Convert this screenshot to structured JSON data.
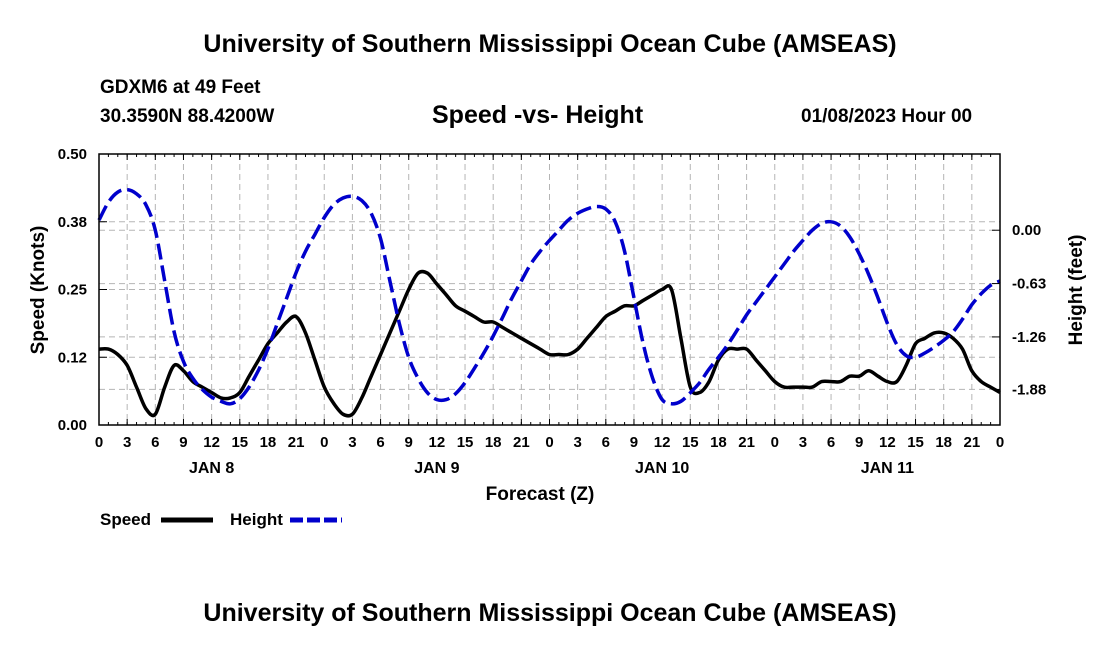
{
  "header": {
    "title": "University of Southern Mississippi Ocean Cube (AMSEAS)",
    "station": "GDXM6 at 49 Feet",
    "coords": "30.3590N  88.4200W",
    "date": "01/08/2023 Hour 00"
  },
  "footer": {
    "title": "University of Southern Mississippi Ocean Cube (AMSEAS)"
  },
  "chart_data": {
    "type": "line",
    "title": "Speed -vs- Height",
    "xlabel": "Forecast (Z)",
    "ylabel_left": "Speed (Knots)",
    "ylabel_right": "Height (feet)",
    "x_unit": "hours since 01/08/2023 00Z",
    "xlim": [
      0,
      96
    ],
    "x_ticks": [
      0,
      3,
      6,
      9,
      12,
      15,
      18,
      21,
      24,
      27,
      30,
      33,
      36,
      39,
      42,
      45,
      48,
      51,
      54,
      57,
      60,
      63,
      66,
      69,
      72,
      75,
      78,
      81,
      84,
      87,
      90,
      93,
      96
    ],
    "x_tick_labels": [
      "0",
      "3",
      "6",
      "9",
      "12",
      "15",
      "18",
      "21",
      "0",
      "3",
      "6",
      "9",
      "12",
      "15",
      "18",
      "21",
      "0",
      "3",
      "6",
      "9",
      "12",
      "15",
      "18",
      "21",
      "0",
      "3",
      "6",
      "9",
      "12",
      "15",
      "18",
      "21",
      "0"
    ],
    "day_labels": [
      {
        "x": 12,
        "label": "JAN 8"
      },
      {
        "x": 36,
        "label": "JAN 9"
      },
      {
        "x": 60,
        "label": "JAN 10"
      },
      {
        "x": 84,
        "label": "JAN 11"
      }
    ],
    "left_axis": {
      "ylim": [
        0,
        0.5
      ],
      "ticks": [
        0,
        0.125,
        0.25,
        0.375,
        0.5
      ],
      "tick_labels": [
        "0.00",
        "0.12",
        "0.25",
        "0.38",
        "0.50"
      ]
    },
    "right_axis": {
      "ylim": [
        -2.3,
        0.9
      ],
      "ticks": [
        0,
        -0.63,
        -1.26,
        -1.88
      ],
      "tick_labels": [
        "0.00",
        "-0.63",
        "-1.26",
        "-1.88"
      ]
    },
    "grid": true,
    "legend": {
      "position": "bottom-left",
      "speed_label": "Speed",
      "height_label": "Height"
    },
    "series": [
      {
        "name": "Speed",
        "axis": "left",
        "color": "#000000",
        "style": "solid",
        "x": [
          0,
          1,
          2,
          3,
          4,
          5,
          6,
          7,
          8,
          9,
          10,
          11,
          12,
          13,
          14,
          15,
          16,
          17,
          18,
          19,
          20,
          21,
          22,
          23,
          24,
          25,
          26,
          27,
          28,
          29,
          30,
          31,
          32,
          33,
          34,
          35,
          36,
          37,
          38,
          39,
          40,
          41,
          42,
          43,
          44,
          45,
          46,
          47,
          48,
          49,
          50,
          51,
          52,
          53,
          54,
          55,
          56,
          57,
          58,
          59,
          60,
          61,
          62,
          63,
          64,
          65,
          66,
          67,
          68,
          69,
          70,
          71,
          72,
          73,
          74,
          75,
          76,
          77,
          78,
          79,
          80,
          81,
          82,
          83,
          84,
          85,
          86,
          87,
          88,
          89,
          90,
          91,
          92,
          93,
          94,
          95,
          96
        ],
        "values": [
          0.14,
          0.14,
          0.13,
          0.11,
          0.07,
          0.03,
          0.02,
          0.07,
          0.11,
          0.1,
          0.08,
          0.07,
          0.06,
          0.05,
          0.05,
          0.06,
          0.09,
          0.12,
          0.15,
          0.17,
          0.19,
          0.2,
          0.17,
          0.12,
          0.07,
          0.04,
          0.02,
          0.02,
          0.05,
          0.09,
          0.13,
          0.17,
          0.21,
          0.25,
          0.28,
          0.28,
          0.26,
          0.24,
          0.22,
          0.21,
          0.2,
          0.19,
          0.19,
          0.18,
          0.17,
          0.16,
          0.15,
          0.14,
          0.13,
          0.13,
          0.13,
          0.14,
          0.16,
          0.18,
          0.2,
          0.21,
          0.22,
          0.22,
          0.23,
          0.24,
          0.25,
          0.25,
          0.16,
          0.07,
          0.06,
          0.08,
          0.12,
          0.14,
          0.14,
          0.14,
          0.12,
          0.1,
          0.08,
          0.07,
          0.07,
          0.07,
          0.07,
          0.08,
          0.08,
          0.08,
          0.09,
          0.09,
          0.1,
          0.09,
          0.08,
          0.08,
          0.11,
          0.15,
          0.16,
          0.17,
          0.17,
          0.16,
          0.14,
          0.1,
          0.08,
          0.07,
          0.06
        ]
      },
      {
        "name": "Height",
        "axis": "right",
        "color": "#0000cc",
        "style": "dashed",
        "x": [
          0,
          1,
          2,
          3,
          4,
          5,
          6,
          7,
          8,
          9,
          10,
          11,
          12,
          13,
          14,
          15,
          16,
          17,
          18,
          19,
          20,
          21,
          22,
          23,
          24,
          25,
          26,
          27,
          28,
          29,
          30,
          31,
          32,
          33,
          34,
          35,
          36,
          37,
          38,
          39,
          40,
          41,
          42,
          43,
          44,
          45,
          46,
          47,
          48,
          49,
          50,
          51,
          52,
          53,
          54,
          55,
          56,
          57,
          58,
          59,
          60,
          61,
          62,
          63,
          64,
          65,
          66,
          67,
          68,
          69,
          70,
          71,
          72,
          73,
          74,
          75,
          76,
          77,
          78,
          79,
          80,
          81,
          82,
          83,
          84,
          85,
          86,
          87,
          88,
          89,
          90,
          91,
          92,
          93,
          94,
          95,
          96
        ],
        "values": [
          0.12,
          0.33,
          0.45,
          0.48,
          0.43,
          0.3,
          0.0,
          -0.6,
          -1.2,
          -1.55,
          -1.75,
          -1.88,
          -1.97,
          -2.02,
          -2.05,
          -1.99,
          -1.85,
          -1.65,
          -1.4,
          -1.1,
          -0.8,
          -0.5,
          -0.25,
          -0.05,
          0.15,
          0.3,
          0.38,
          0.4,
          0.35,
          0.2,
          -0.1,
          -0.6,
          -1.1,
          -1.5,
          -1.75,
          -1.92,
          -2.0,
          -2.0,
          -1.93,
          -1.8,
          -1.63,
          -1.45,
          -1.25,
          -1.03,
          -0.8,
          -0.6,
          -0.4,
          -0.25,
          -0.12,
          0.0,
          0.12,
          0.2,
          0.25,
          0.28,
          0.25,
          0.1,
          -0.25,
          -0.8,
          -1.35,
          -1.75,
          -2.0,
          -2.05,
          -2.02,
          -1.92,
          -1.8,
          -1.64,
          -1.5,
          -1.35,
          -1.18,
          -1.0,
          -0.85,
          -0.7,
          -0.55,
          -0.4,
          -0.25,
          -0.12,
          0.0,
          0.08,
          0.1,
          0.05,
          -0.08,
          -0.28,
          -0.52,
          -0.8,
          -1.1,
          -1.35,
          -1.48,
          -1.5,
          -1.45,
          -1.38,
          -1.3,
          -1.2,
          -1.05,
          -0.88,
          -0.75,
          -0.65,
          -0.6
        ]
      }
    ]
  }
}
